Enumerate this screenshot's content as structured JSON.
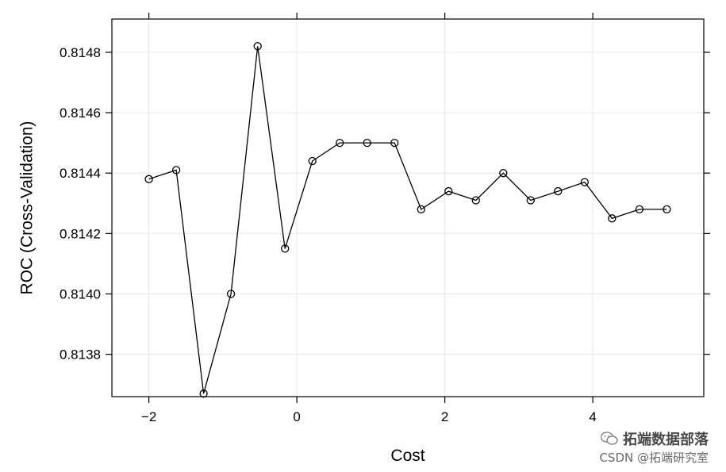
{
  "chart_data": {
    "type": "line",
    "xlabel": "Cost",
    "ylabel": "ROC (Cross-Validation)",
    "xlim": [
      -2.5,
      5.5
    ],
    "ylim": [
      0.81366,
      0.81491
    ],
    "xticks": [
      -2,
      0,
      2,
      4
    ],
    "xtick_labels": [
      "−2",
      "0",
      "2",
      "4"
    ],
    "yticks": [
      0.8138,
      0.814,
      0.8142,
      0.8144,
      0.8146,
      0.8148
    ],
    "ytick_labels": [
      "0.8138",
      "0.8140",
      "0.8142",
      "0.8144",
      "0.8146",
      "0.8148"
    ],
    "grid": true,
    "markers": "open-circle",
    "series": [
      {
        "x": [
          -2.0,
          -1.63,
          -1.26,
          -0.89,
          -0.53,
          -0.16,
          0.21,
          0.58,
          0.95,
          1.32,
          1.68,
          2.05,
          2.42,
          2.79,
          3.16,
          3.53,
          3.89,
          4.26,
          4.63,
          5.0
        ],
        "values": [
          0.81438,
          0.81441,
          0.81367,
          0.814,
          0.81482,
          0.81415,
          0.81444,
          0.8145,
          0.8145,
          0.8145,
          0.81428,
          0.81434,
          0.81431,
          0.8144,
          0.81431,
          0.81434,
          0.81437,
          0.81425,
          0.81428,
          0.81428
        ]
      }
    ]
  },
  "watermark": {
    "line1": "拓端数据部落",
    "line2": "CSDN @拓端研究室"
  }
}
